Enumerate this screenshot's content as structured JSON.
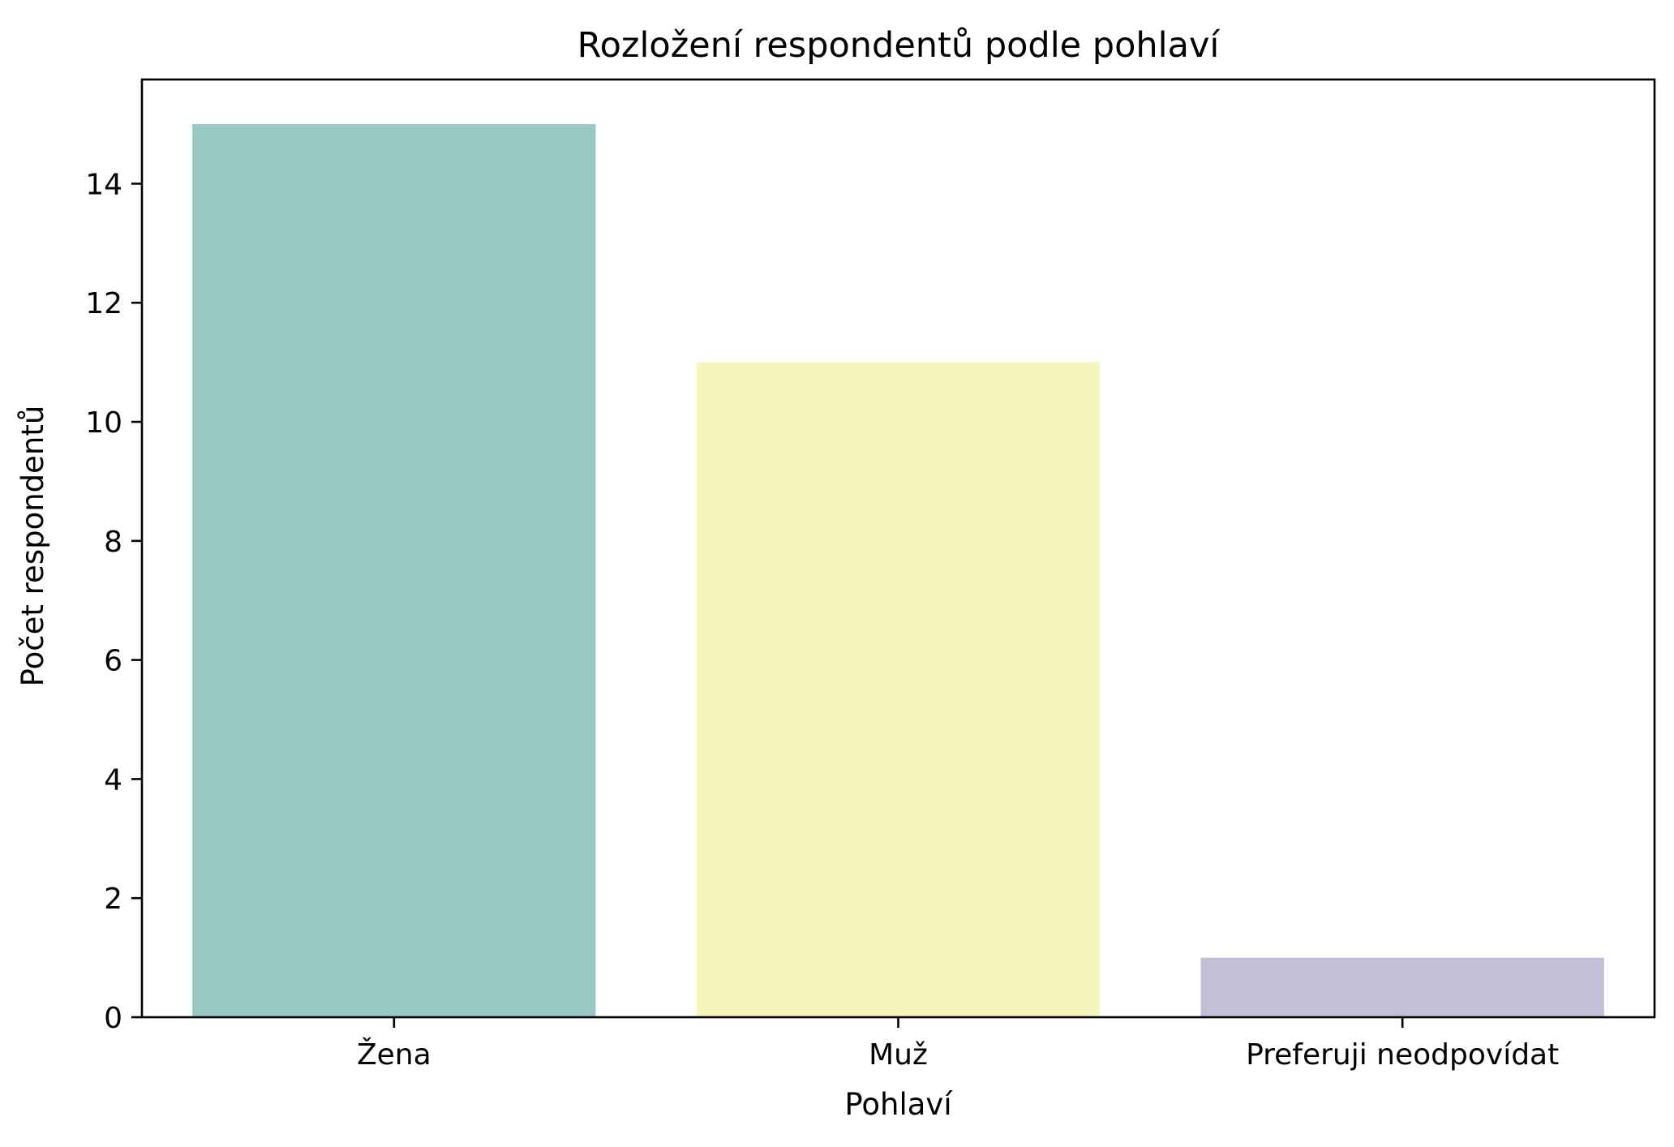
{
  "chart_data": {
    "type": "bar",
    "title": "Rozložení respondentů podle pohlaví",
    "xlabel": "Pohlaví",
    "ylabel": "Počet respondentů",
    "categories": [
      "Žena",
      "Muž",
      "Preferuji neodpovídat"
    ],
    "values": [
      15,
      11,
      1
    ],
    "colors": [
      "#99c9c2",
      "#f6f6bc",
      "#c2bfd6"
    ],
    "ylim": [
      0,
      15.75
    ],
    "yticks": [
      0,
      2,
      4,
      6,
      8,
      10,
      12,
      14
    ],
    "ytick_labels": [
      "0",
      "2",
      "4",
      "6",
      "8",
      "10",
      "12",
      "14"
    ],
    "grid": false,
    "legend": "none"
  }
}
